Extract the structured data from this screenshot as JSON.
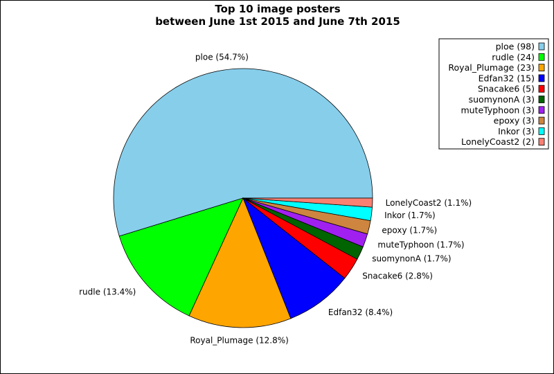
{
  "chart_data": {
    "type": "pie",
    "title": "Top 10 image posters",
    "subtitle": "between June 1st 2015 and June 7th 2015",
    "slices": [
      {
        "label": "ploe",
        "value": 98,
        "percent_label": "54.7%",
        "color": "#87CEEB"
      },
      {
        "label": "rudle",
        "value": 24,
        "percent_label": "13.4%",
        "color": "#00FF00"
      },
      {
        "label": "Royal_Plumage",
        "value": 23,
        "percent_label": "12.8%",
        "color": "#FFA500"
      },
      {
        "label": "Edfan32",
        "value": 15,
        "percent_label": "8.4%",
        "color": "#0000FF"
      },
      {
        "label": "Snacake6",
        "value": 5,
        "percent_label": "2.8%",
        "color": "#FF0000"
      },
      {
        "label": "suomynonA",
        "value": 3,
        "percent_label": "1.7%",
        "color": "#006400"
      },
      {
        "label": "muteTyphoon",
        "value": 3,
        "percent_label": "1.7%",
        "color": "#A020F0"
      },
      {
        "label": "epoxy",
        "value": 3,
        "percent_label": "1.7%",
        "color": "#CD853F"
      },
      {
        "label": "Inkor",
        "value": 3,
        "percent_label": "1.7%",
        "color": "#00FFFF"
      },
      {
        "label": "LonelyCoast2",
        "value": 2,
        "percent_label": "1.1%",
        "color": "#FA8072"
      }
    ],
    "legend_position": "top-right"
  }
}
